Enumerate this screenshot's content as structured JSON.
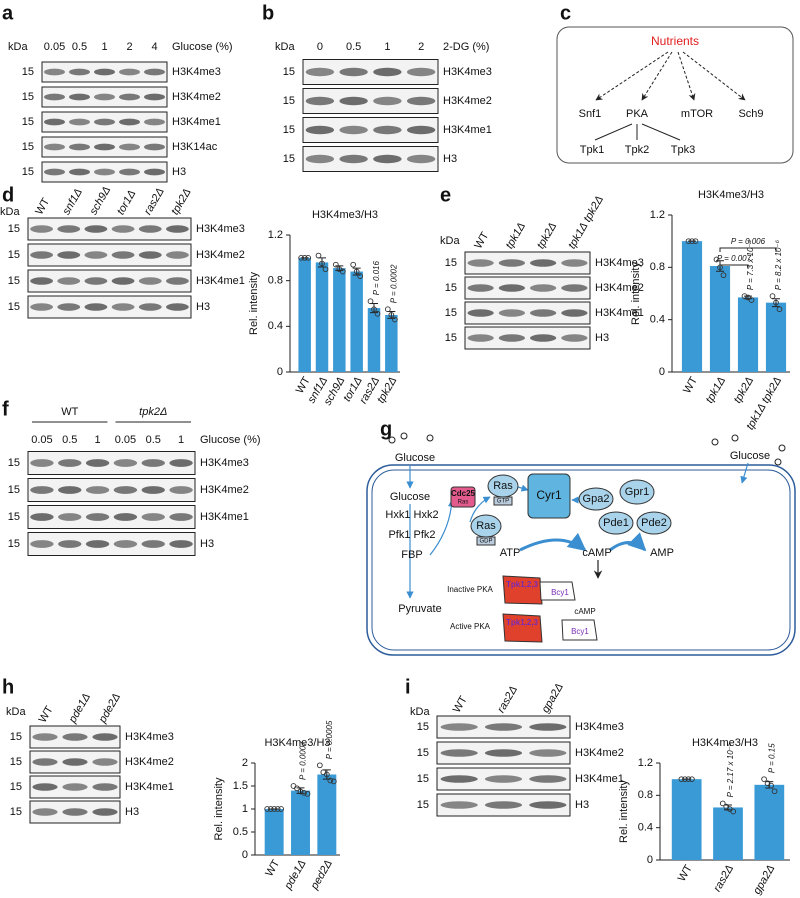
{
  "panels": [
    {
      "label": "a",
      "kda": "kDa",
      "lanes": [
        "0.05",
        "0.5",
        "1",
        "2",
        "4"
      ],
      "lanes_title": "Glucose (%)",
      "rows": [
        {
          "kda": "15",
          "name": "H3K4me3"
        },
        {
          "kda": "15",
          "name": "H3K4me2"
        },
        {
          "kda": "15",
          "name": "H3K4me1"
        },
        {
          "kda": "15",
          "name": "H3K14ac"
        },
        {
          "kda": "15",
          "name": "H3"
        }
      ]
    },
    {
      "label": "b",
      "kda": "kDa",
      "lanes": [
        "0",
        "0.5",
        "1",
        "2"
      ],
      "lanes_title": "2-DG (%)",
      "rows": [
        {
          "kda": "15",
          "name": "H3K4me3"
        },
        {
          "kda": "15",
          "name": "H3K4me2"
        },
        {
          "kda": "15",
          "name": "H3K4me1"
        },
        {
          "kda": "15",
          "name": "H3"
        }
      ]
    },
    {
      "label": "d",
      "kda": "kDa",
      "lanes": [
        "WT",
        "snf1Δ",
        "sch9Δ",
        "tor1Δ",
        "ras2Δ",
        "tpk2Δ"
      ],
      "rows": [
        {
          "kda": "15",
          "name": "H3K4me3"
        },
        {
          "kda": "15",
          "name": "H3K4me2"
        },
        {
          "kda": "15",
          "name": "H3K4me1"
        },
        {
          "kda": "15",
          "name": "H3"
        }
      ]
    },
    {
      "label": "e",
      "kda": "kDa",
      "lanes": [
        "WT",
        "tpk1Δ",
        "tpk2Δ",
        "tpk1Δ tpk2Δ"
      ],
      "rows": [
        {
          "kda": "15",
          "name": "H3K4me3"
        },
        {
          "kda": "15",
          "name": "H3K4me2"
        },
        {
          "kda": "15",
          "name": "H3K4me1"
        },
        {
          "kda": "15",
          "name": "H3"
        }
      ]
    },
    {
      "label": "f",
      "groups": [
        "WT",
        "tpk2Δ"
      ],
      "lanes": [
        "0.05",
        "0.5",
        "1",
        "0.05",
        "0.5",
        "1"
      ],
      "lanes_title": "Glucose (%)",
      "rows": [
        {
          "kda": "15",
          "name": "H3K4me3"
        },
        {
          "kda": "15",
          "name": "H3K4me2"
        },
        {
          "kda": "15",
          "name": "H3K4me1"
        },
        {
          "kda": "15",
          "name": "H3"
        }
      ]
    },
    {
      "label": "h",
      "kda": "kDa",
      "lanes": [
        "WT",
        "pde1Δ",
        "pde2Δ"
      ],
      "rows": [
        {
          "kda": "15",
          "name": "H3K4me3"
        },
        {
          "kda": "15",
          "name": "H3K4me2"
        },
        {
          "kda": "15",
          "name": "H3K4me1"
        },
        {
          "kda": "15",
          "name": "H3"
        }
      ]
    },
    {
      "label": "i",
      "kda": "kDa",
      "lanes": [
        "WT",
        "ras2Δ",
        "gpa2Δ"
      ],
      "rows": [
        {
          "kda": "15",
          "name": "H3K4me3"
        },
        {
          "kda": "15",
          "name": "H3K4me2"
        },
        {
          "kda": "15",
          "name": "H3K4me1"
        },
        {
          "kda": "15",
          "name": "H3"
        }
      ]
    }
  ],
  "diagram_c": {
    "label": "c",
    "top": "Nutrients",
    "kinases": [
      "Snf1",
      "PKA",
      "mTOR",
      "Sch9"
    ],
    "subunits": [
      "Tpk1",
      "Tpk2",
      "Tpk3"
    ]
  },
  "diagram_g": {
    "label": "g",
    "glucose_left": "Glucose",
    "glucose_right": "Glucose",
    "glucose_in": "Glucose",
    "hxk": "Hxk1 Hxk2",
    "pfk": "Pfk1 Pfk2",
    "fbp": "FBP",
    "pyruvate": "Pyruvate",
    "cdc25": "Cdc25",
    "cdc25_ras": "Ras",
    "ras_gtp": "Ras",
    "gtp": "GTP",
    "ras_gdp": "Ras",
    "gdp": "GDP",
    "cyr1": "Cyr1",
    "gpa2": "Gpa2",
    "gpr1": "Gpr1",
    "pde1": "Pde1",
    "pde2": "Pde2",
    "atp": "ATP",
    "camp": "cAMP",
    "amp": "AMP",
    "inactive": "Inactive PKA",
    "tpk_inactive": "Tpk1,2,3",
    "bcy1_inactive": "Bcy1",
    "camp_bound": "cAMP",
    "active": "Active PKA",
    "tpk_active": "Tpk1,2,3",
    "bcy1_active": "Bcy1"
  },
  "chart_data": [
    {
      "type": "bar",
      "title": "H3K4me3/H3",
      "y_label": "Rel. intensity",
      "color": "#3a9ad6",
      "categories": [
        "WT",
        "snf1Δ",
        "sch9Δ",
        "tor1Δ",
        "ras2Δ",
        "tpk2Δ"
      ],
      "values": [
        1.0,
        0.96,
        0.91,
        0.88,
        0.56,
        0.5
      ],
      "errors": [
        0,
        0.04,
        0.02,
        0.03,
        0.04,
        0.03
      ],
      "points": [
        [
          1,
          1,
          1
        ],
        [
          1.02,
          0.95,
          0.9
        ],
        [
          0.94,
          0.9,
          0.88
        ],
        [
          0.94,
          0.88,
          0.84
        ],
        [
          0.62,
          0.55,
          0.51
        ],
        [
          0.55,
          0.5,
          0.46
        ]
      ],
      "value_annotations": [
        null,
        null,
        null,
        null,
        "P = 0.016",
        "P = 0.0002"
      ],
      "ylim": [
        0,
        1.2
      ],
      "yticks": [
        0,
        0.4,
        0.8,
        1.2
      ]
    },
    {
      "type": "bar",
      "title": "H3K4me3/H3",
      "y_label": "Rel. intensity",
      "color": "#3a9ad6",
      "categories": [
        "WT",
        "tpk1Δ",
        "tpk2Δ",
        "tpk1Δ tpk2Δ"
      ],
      "values": [
        1.0,
        0.81,
        0.57,
        0.53
      ],
      "errors": [
        0,
        0.04,
        0.01,
        0.03
      ],
      "points": [
        [
          1,
          1,
          1
        ],
        [
          0.86,
          0.8,
          0.74
        ],
        [
          0.58,
          0.57,
          0.55
        ],
        [
          0.58,
          0.53,
          0.48
        ]
      ],
      "value_annotations": [
        null,
        null,
        "P = 7.3 x 10⁻⁴",
        "P = 8.2 x 10⁻⁶"
      ],
      "comparisons": [
        {
          "from": "tpk1Δ",
          "to": "tpk2Δ",
          "label": "P = 0.007"
        },
        {
          "from": "tpk1Δ",
          "to": "tpk1Δ tpk2Δ",
          "label": "P = 0.006"
        }
      ],
      "ylim": [
        0,
        1.2
      ],
      "yticks": [
        0,
        0.4,
        0.8,
        1.2
      ]
    },
    {
      "type": "bar",
      "title": "H3K4me3/H3",
      "y_label": "Rel. intensity",
      "color": "#3a9ad6",
      "categories": [
        "WT",
        "pde1Δ",
        "ped2Δ"
      ],
      "values": [
        1.0,
        1.4,
        1.75
      ],
      "errors": [
        0,
        0.06,
        0.1
      ],
      "points": [
        [
          1,
          1,
          1,
          1,
          1
        ],
        [
          1.5,
          1.45,
          1.38,
          1.35,
          1.33
        ],
        [
          1.95,
          1.8,
          1.75,
          1.62,
          1.6
        ]
      ],
      "value_annotations": [
        null,
        "P = 0.0007",
        "P = 0.0005"
      ],
      "ylim": [
        0,
        2
      ],
      "yticks": [
        0,
        0.5,
        1,
        1.5,
        2
      ]
    },
    {
      "type": "bar",
      "title": "H3K4me3/H3",
      "y_label": "Rel. intensity",
      "color": "#3a9ad6",
      "categories": [
        "WT",
        "ras2Δ",
        "gpa2Δ"
      ],
      "values": [
        1.0,
        0.65,
        0.93
      ],
      "errors": [
        0,
        0.03,
        0.04
      ],
      "points": [
        [
          1,
          1,
          1,
          1
        ],
        [
          0.7,
          0.66,
          0.63,
          0.6
        ],
        [
          1.0,
          0.95,
          0.92,
          0.85
        ]
      ],
      "value_annotations": [
        null,
        "P = 2.17 x 10⁻⁵",
        "P = 0.15"
      ],
      "ylim": [
        0,
        1.2
      ],
      "yticks": [
        0,
        0.4,
        0.8,
        1.2
      ]
    }
  ]
}
